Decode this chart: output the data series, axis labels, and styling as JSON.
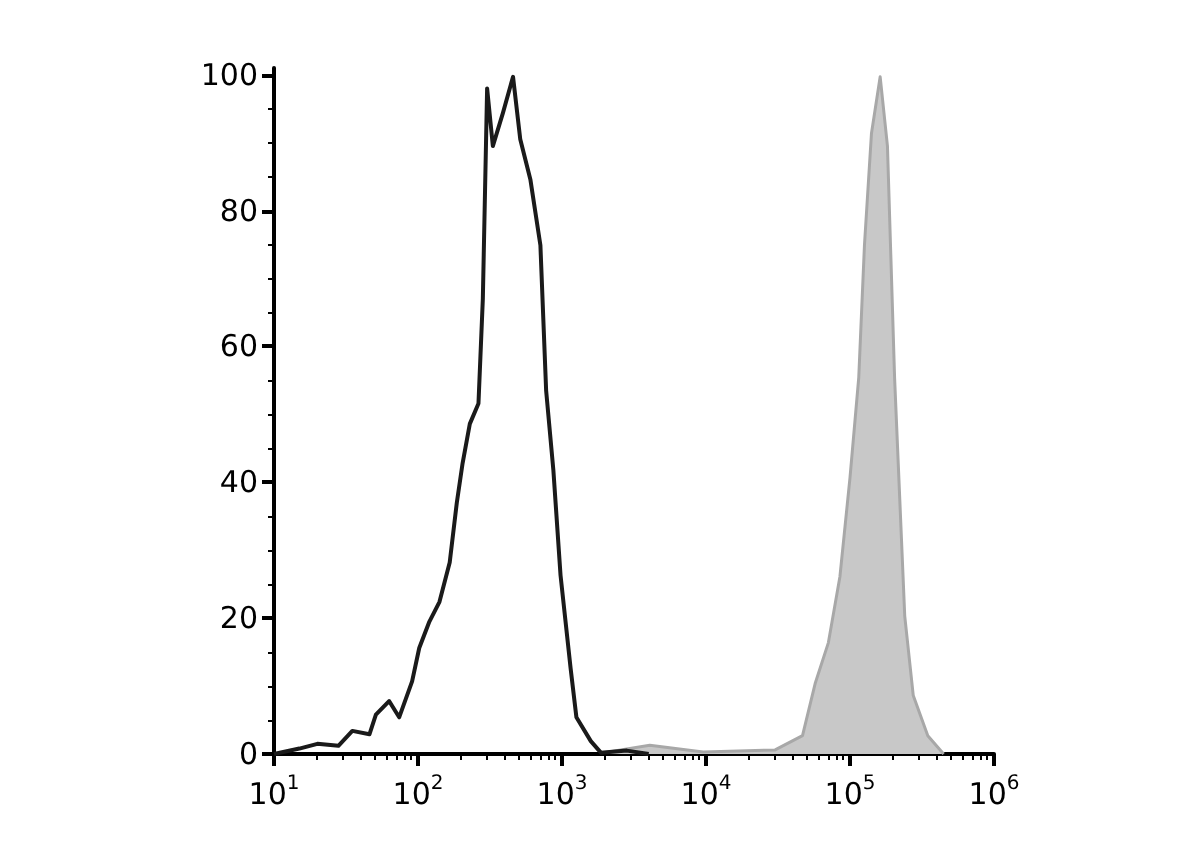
{
  "chart_data": {
    "type": "line",
    "log": "x",
    "grid": false,
    "marker": "none",
    "xlim": [
      10,
      1000000
    ],
    "xticks": [
      {
        "value": 10,
        "label": "10$^{1}$"
      },
      {
        "value": 100,
        "label": "10$^{2}$"
      },
      {
        "value": 1000,
        "label": "10$^{3}$"
      },
      {
        "value": 10000,
        "label": "10$^{4}$"
      },
      {
        "value": 100000,
        "label": "10$^{5}$"
      },
      {
        "value": 1000000,
        "label": "10$^{6}$"
      }
    ],
    "ylim": [
      0,
      101
    ],
    "yticks": [
      0,
      20,
      40,
      60,
      80,
      100
    ],
    "series": [
      {
        "type": "area",
        "color": "#c8c8c8",
        "x": [
          1950,
          4070,
          9550,
          30200,
          46800,
          57500,
          70800,
          85100,
          100000,
          115000,
          126000,
          141000,
          162000,
          182000,
          204000,
          240000,
          275000,
          347000,
          447000
        ],
        "values": [
          0.2,
          1.3,
          0.3,
          0.6,
          2.7,
          10.5,
          16.4,
          26.1,
          40.7,
          55.4,
          74.9,
          91.4,
          99.7,
          89.5,
          55.4,
          20.3,
          8.6,
          2.7,
          0
        ]
      },
      {
        "type": "line",
        "color": "#1a1a1a",
        "x": [
          10,
          15,
          20,
          28,
          35,
          46,
          51,
          63,
          74,
          91,
          102,
          120,
          141,
          166,
          186,
          204,
          229,
          263,
          282,
          302,
          331,
          389,
          457,
          513,
          603,
          708,
          776,
          871,
          977,
          1148,
          1259,
          1585,
          1862,
          2818,
          4000
        ],
        "values": [
          0,
          0.8,
          1.5,
          1.2,
          3.4,
          2.9,
          5.8,
          7.8,
          5.4,
          10.7,
          15.6,
          19.5,
          22.4,
          28.2,
          37,
          42.8,
          48.6,
          51.6,
          67,
          98,
          89.5,
          94.4,
          99.7,
          90.5,
          84.6,
          74.9,
          53.5,
          41.8,
          26.3,
          12.6,
          5.4,
          1.9,
          0.2,
          0.5,
          0
        ]
      }
    ]
  }
}
